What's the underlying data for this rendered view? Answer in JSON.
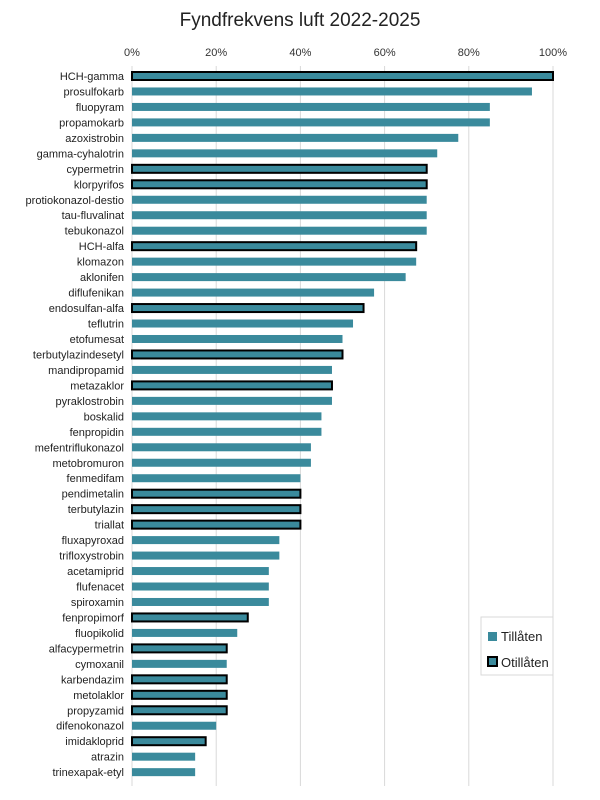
{
  "chart_data": {
    "type": "bar",
    "orientation": "horizontal",
    "title": "Fyndfrekvens  luft 2022-2025",
    "xlim": [
      0,
      100
    ],
    "x_ticks": [
      "0%",
      "20%",
      "40%",
      "60%",
      "80%",
      "100%"
    ],
    "grid": true,
    "legend_position": "bottom-right",
    "legend": [
      {
        "label": "Tillåten",
        "color": "#3a8a9c",
        "border": "none"
      },
      {
        "label": "Otillåten",
        "color": "#3a8a9c",
        "border": "#000000"
      }
    ],
    "categories": [
      "HCH-gamma",
      "prosulfokarb",
      "fluopyram",
      "propamokarb",
      "azoxistrobin",
      "gamma-cyhalotrin",
      "cypermetrin",
      "klorpyrifos",
      "protiokonazol-destio",
      "tau-fluvalinat",
      "tebukonazol",
      "HCH-alfa",
      "klomazon",
      "aklonifen",
      "diflufenikan",
      "endosulfan-alfa",
      "teflutrin",
      "etofumesat",
      "terbutylazindesetyl",
      "mandipropamid",
      "metazaklor",
      "pyraklostrobin",
      "boskalid",
      "fenpropidin",
      "mefentriflukonazol",
      "metobromuron",
      "fenmedifam",
      "pendimetalin",
      "terbutylazin",
      "triallat",
      "fluxapyroxad",
      "trifloxystrobin",
      "acetamiprid",
      "flufenacet",
      "spiroxamin",
      "fenpropimorf",
      "fluopikolid",
      "alfacypermetrin",
      "cymoxanil",
      "karbendazim",
      "metolaklor",
      "propyzamid",
      "difenokonazol",
      "imidakloprid",
      "atrazin",
      "trinexapak-etyl"
    ],
    "values": [
      100,
      95,
      85,
      85,
      77.5,
      72.5,
      70,
      70,
      70,
      70,
      70,
      67.5,
      67.5,
      65,
      57.5,
      55,
      52.5,
      50,
      50,
      47.5,
      47.5,
      47.5,
      45,
      45,
      42.5,
      42.5,
      40,
      40,
      40,
      40,
      35,
      35,
      32.5,
      32.5,
      32.5,
      27.5,
      25,
      22.5,
      22.5,
      22.5,
      22.5,
      22.5,
      20,
      17.5,
      15,
      15
    ],
    "status": [
      "Otillåten",
      "Tillåten",
      "Tillåten",
      "Tillåten",
      "Tillåten",
      "Tillåten",
      "Otillåten",
      "Otillåten",
      "Tillåten",
      "Tillåten",
      "Tillåten",
      "Otillåten",
      "Tillåten",
      "Tillåten",
      "Tillåten",
      "Otillåten",
      "Tillåten",
      "Tillåten",
      "Otillåten",
      "Tillåten",
      "Otillåten",
      "Tillåten",
      "Tillåten",
      "Tillåten",
      "Tillåten",
      "Tillåten",
      "Tillåten",
      "Otillåten",
      "Otillåten",
      "Otillåten",
      "Tillåten",
      "Tillåten",
      "Tillåten",
      "Tillåten",
      "Tillåten",
      "Otillåten",
      "Tillåten",
      "Otillåten",
      "Tillåten",
      "Otillåten",
      "Otillåten",
      "Otillåten",
      "Tillåten",
      "Otillåten",
      "Tillåten",
      "Tillåten"
    ]
  }
}
